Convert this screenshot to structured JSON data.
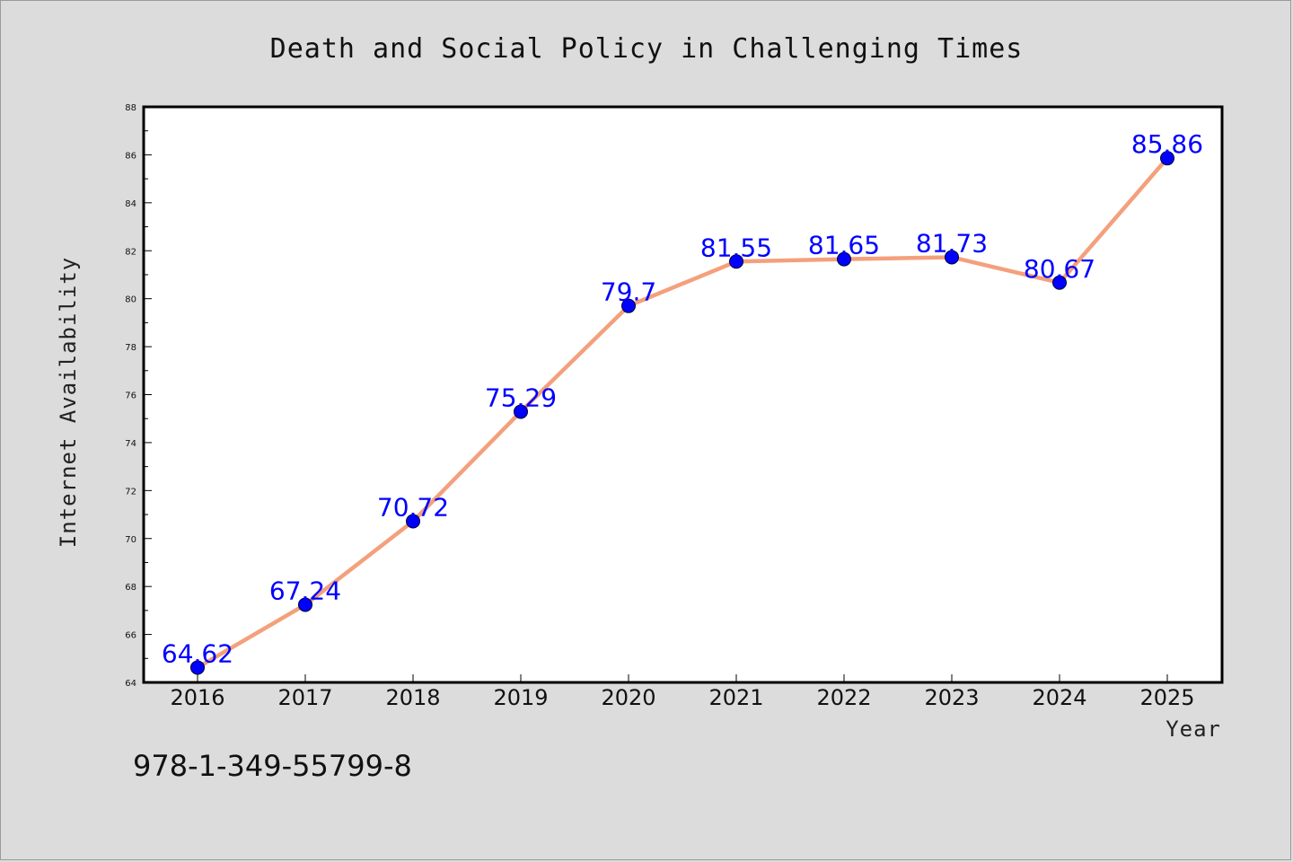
{
  "chart_data": {
    "type": "line",
    "title": "Death and Social Policy in Challenging Times",
    "xlabel": "Year",
    "ylabel": "Internet Availability",
    "categories": [
      "2016",
      "2017",
      "2018",
      "2019",
      "2020",
      "2021",
      "2022",
      "2023",
      "2024",
      "2025"
    ],
    "series": [
      {
        "values": [
          64.62,
          67.24,
          70.72,
          75.29,
          79.7,
          81.55,
          81.65,
          81.73,
          80.67,
          85.86
        ],
        "labels": [
          "64.62",
          "67.24",
          "70.72",
          "75.29",
          "79.7",
          "81.55",
          "81.65",
          "81.73",
          "80.67",
          "85.86"
        ],
        "line_color": "#f4a07c",
        "marker_color": "#0000ff"
      }
    ],
    "ylim": [
      64,
      88
    ],
    "y_ticks": [
      "64",
      "66",
      "68",
      "70",
      "72",
      "74",
      "76",
      "78",
      "80",
      "82",
      "84",
      "86",
      "88"
    ],
    "grid": false,
    "legend": false
  },
  "footnote": "978-1-349-55799-8",
  "colors": {
    "background": "#dcdcdc",
    "plot_area": "#ffffff",
    "line": "#f4a07c",
    "marker": "#0000ff",
    "data_label": "#0000ff"
  }
}
